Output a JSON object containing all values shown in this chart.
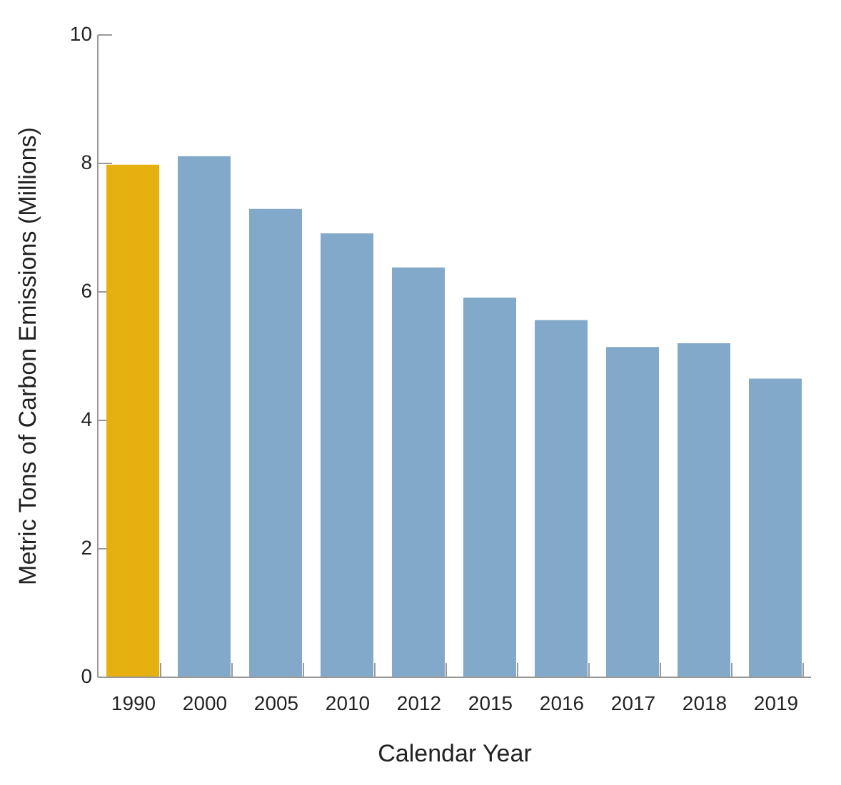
{
  "chart_data": {
    "type": "bar",
    "xlabel": "Calendar Year",
    "ylabel": "Metric Tons of Carbon Emissions (Millions)",
    "categories": [
      "1990",
      "2000",
      "2005",
      "2010",
      "2012",
      "2015",
      "2016",
      "2017",
      "2018",
      "2019"
    ],
    "values": [
      7.97,
      8.1,
      7.28,
      6.9,
      6.37,
      5.9,
      5.55,
      5.13,
      5.19,
      4.64
    ],
    "colors": [
      "#e6b010",
      "#82a9ca",
      "#82a9ca",
      "#82a9ca",
      "#82a9ca",
      "#82a9ca",
      "#82a9ca",
      "#82a9ca",
      "#82a9ca",
      "#82a9ca"
    ],
    "ylim": [
      0,
      10
    ],
    "yticks": [
      0,
      2,
      4,
      6,
      8,
      10
    ],
    "grid": false
  }
}
